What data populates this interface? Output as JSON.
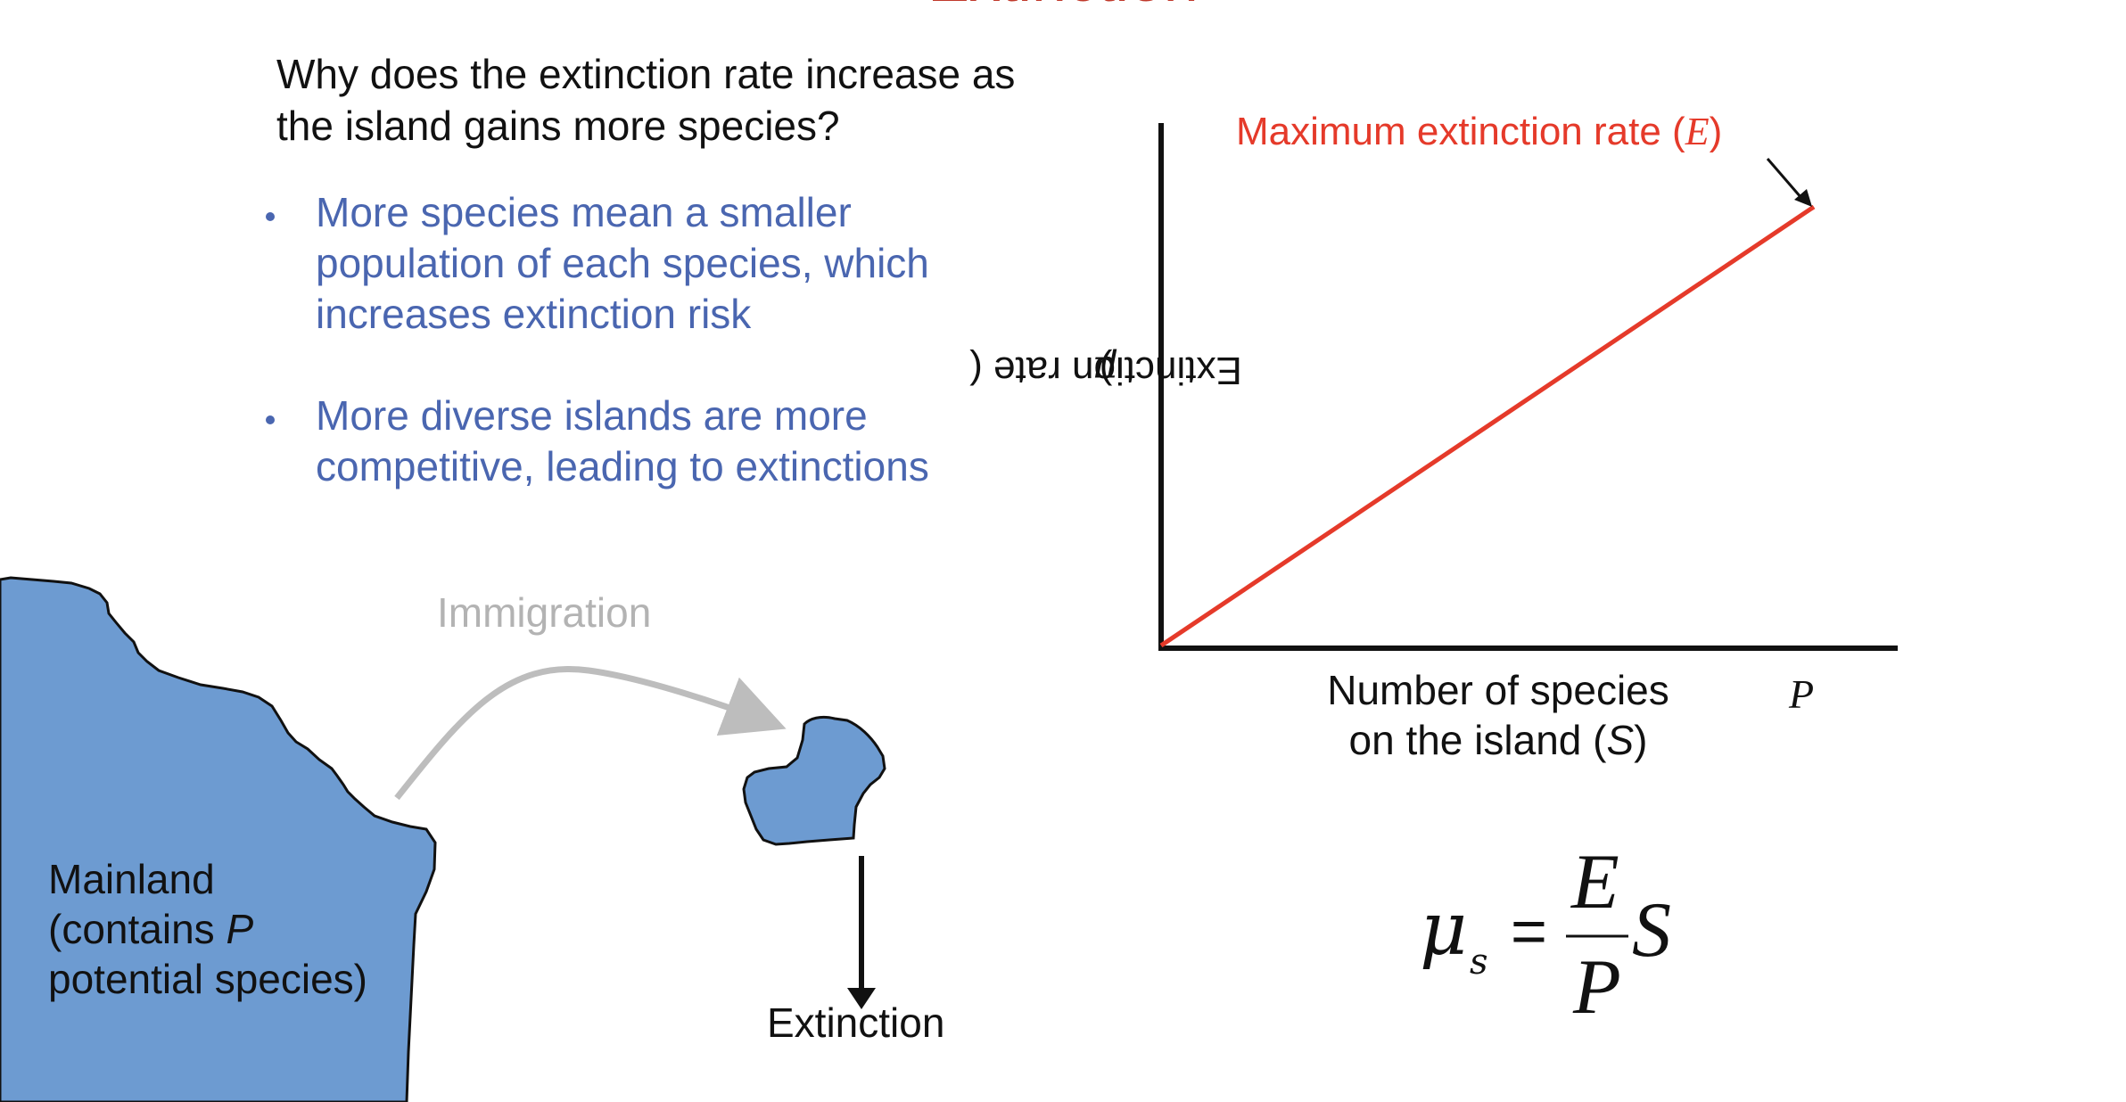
{
  "slide": {
    "title": "Extinction",
    "question": "Why does the extinction rate increase as the island gains more species?",
    "bullets": [
      "More species mean a smaller population of each species, which increases extinction risk",
      "More diverse islands are more competitive, leading to extinctions"
    ]
  },
  "diagram": {
    "immigration_label": "Immigration",
    "mainland_line1": "Mainland",
    "mainland_line2_prefix": "(contains ",
    "mainland_line2_var": "P",
    "mainland_line3": "potential species)",
    "extinction_label": "Extinction"
  },
  "chart": {
    "ylabel_prefix": "Extinction rate (",
    "ylabel_symbol": "μ",
    "ylabel_suffix": ")",
    "xlabel_line1": "Number of species",
    "xlabel_line2_prefix": "on the island (",
    "xlabel_line2_var": "S",
    "xlabel_line2_suffix": ")",
    "x_end_label": "P",
    "max_label_prefix": "Maximum extinction rate (",
    "max_label_var": "E",
    "max_label_suffix": ")"
  },
  "chart_data": {
    "type": "line",
    "series": [
      {
        "values": [
          [
            0,
            0
          ],
          [
            1,
            1
          ]
        ]
      }
    ],
    "color": "#e53a2a"
  },
  "formula": {
    "lhs": "μ",
    "lhs_sub": "s",
    "equals": "=",
    "numerator": "E",
    "denominator": "P",
    "tail": "S"
  },
  "colors": {
    "title": "#c0392b",
    "bullets": "#4a66b0",
    "land": "#6d9bd1",
    "line": "#e53a2a",
    "arrow_gray": "#bdbdbd"
  }
}
